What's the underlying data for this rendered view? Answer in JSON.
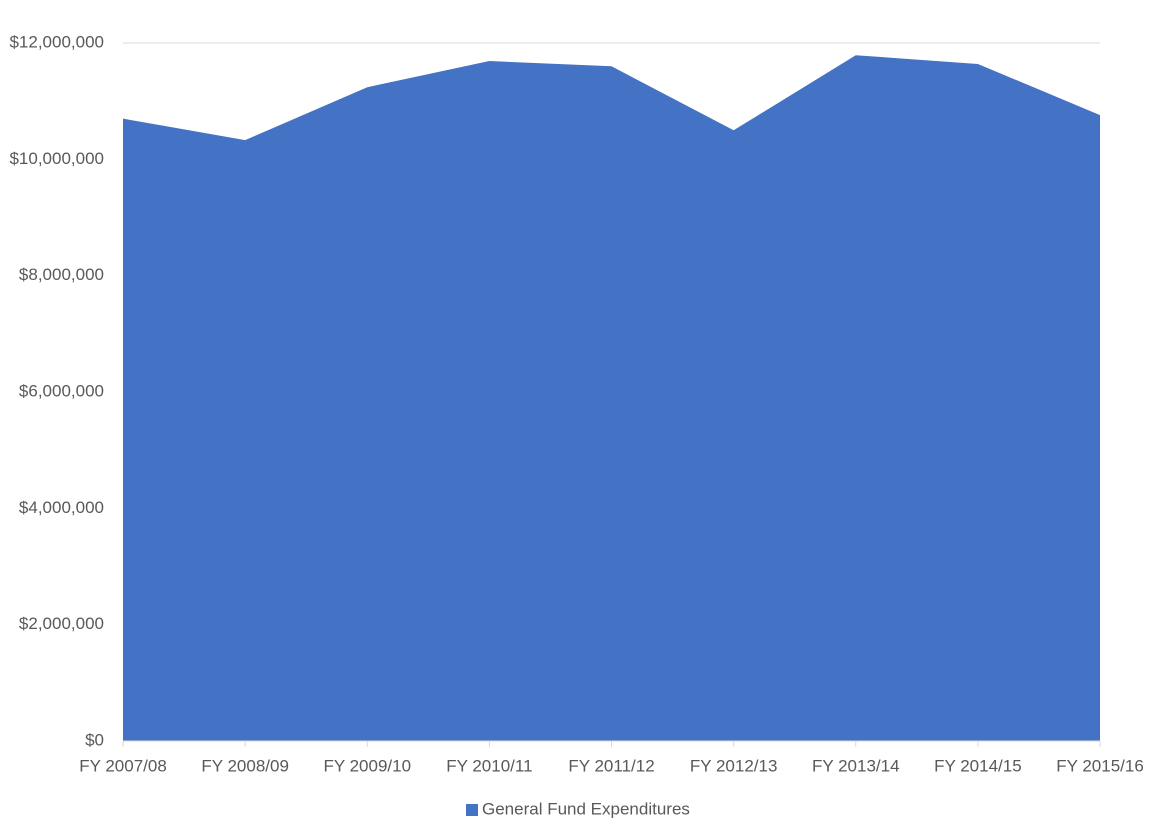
{
  "chart_data": {
    "type": "area",
    "categories": [
      "FY 2007/08",
      "FY 2008/09",
      "FY 2009/10",
      "FY 2010/11",
      "FY 2011/12",
      "FY 2012/13",
      "FY 2013/14",
      "FY 2014/15",
      "FY 2015/16"
    ],
    "series": [
      {
        "name": "General Fund Expenditures",
        "color": "#4472c4",
        "values": [
          10700000,
          10330000,
          11240000,
          11690000,
          11600000,
          10500000,
          11790000,
          11640000,
          10760000
        ]
      }
    ],
    "ylim": [
      0,
      12000000
    ],
    "yticks": [
      {
        "value": 0,
        "label": "$0"
      },
      {
        "value": 2000000,
        "label": "$2,000,000"
      },
      {
        "value": 4000000,
        "label": "$4,000,000"
      },
      {
        "value": 6000000,
        "label": "$6,000,000"
      },
      {
        "value": 8000000,
        "label": "$8,000,000"
      },
      {
        "value": 10000000,
        "label": "$10,000,000"
      },
      {
        "value": 12000000,
        "label": "$12,000,000"
      }
    ],
    "grid": true,
    "legend": "bottom"
  }
}
